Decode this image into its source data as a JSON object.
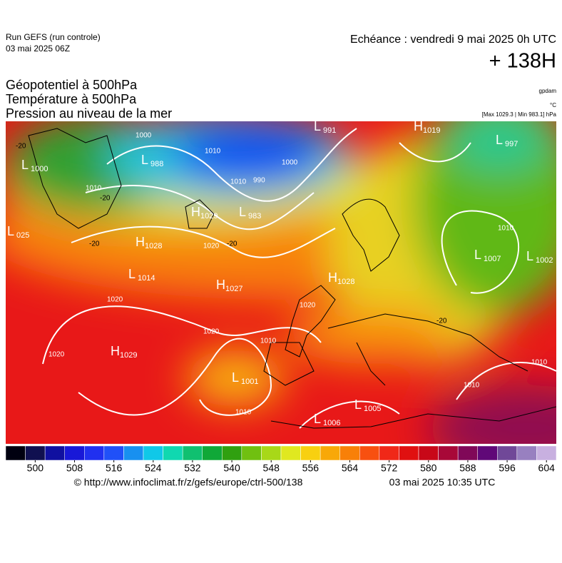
{
  "header": {
    "run": "Run GEFS (run controle)",
    "run_date": "03 mai 2025 06Z",
    "echeance": "Echéance : vendredi 9 mai 2025 0h UTC",
    "lead": "+ 138H",
    "fields": [
      "Géopotentiel à 500hPa",
      "Température à 500hPa",
      "Pression au niveau de la mer"
    ],
    "units": [
      "gpdam",
      "°C",
      "[Max 1029.3 | Min 983.1] hPa"
    ]
  },
  "map": {
    "pressure_centers": [
      {
        "letter": "L",
        "value": "991"
      },
      {
        "letter": "H",
        "value": "1019"
      },
      {
        "letter": "L",
        "value": "997"
      },
      {
        "letter": "L",
        "value": "1000"
      },
      {
        "letter": "L",
        "value": "988"
      },
      {
        "letter": "H",
        "value": "1029"
      },
      {
        "letter": "L",
        "value": "983"
      },
      {
        "letter": "L",
        "value": "025"
      },
      {
        "letter": "H",
        "value": "1028"
      },
      {
        "letter": "L",
        "value": "1014"
      },
      {
        "letter": "H",
        "value": "1027"
      },
      {
        "letter": "H",
        "value": "1028"
      },
      {
        "letter": "L",
        "value": "1007"
      },
      {
        "letter": "L",
        "value": "1002"
      },
      {
        "letter": "H",
        "value": "1029"
      },
      {
        "letter": "L",
        "value": "1001"
      },
      {
        "letter": "L",
        "value": "1006"
      },
      {
        "letter": "L",
        "value": "1005"
      }
    ],
    "isobar_labels": [
      "1000",
      "1010",
      "1000",
      "990",
      "1010",
      "1010",
      "1020",
      "1020",
      "1020",
      "1020",
      "1010",
      "1020",
      "1010",
      "1010",
      "1010",
      "1010"
    ],
    "temperature_labels": [
      "-20",
      "-20",
      "-20",
      "-20",
      "-20"
    ]
  },
  "colorbar": {
    "lim": [
      494,
      606
    ],
    "ticks": [
      500,
      508,
      516,
      524,
      532,
      540,
      548,
      556,
      564,
      572,
      580,
      588,
      596,
      604
    ],
    "colors": [
      "#000010",
      "#101050",
      "#1010a0",
      "#1818d8",
      "#2030f0",
      "#2050f8",
      "#1890f0",
      "#10c8e8",
      "#10d8b0",
      "#10c070",
      "#10a838",
      "#30a010",
      "#70c010",
      "#a8d818",
      "#e0e820",
      "#f8d010",
      "#f8a808",
      "#f88008",
      "#f85010",
      "#f02818",
      "#e01010",
      "#c80818",
      "#a80838",
      "#800858",
      "#600878",
      "#704898",
      "#9880c0",
      "#c8b0e0"
    ]
  },
  "footer": {
    "url": "© http://www.infoclimat.fr/z/gefs/europe/ctrl-500/138",
    "date": "03 mai 2025 10:35 UTC"
  }
}
